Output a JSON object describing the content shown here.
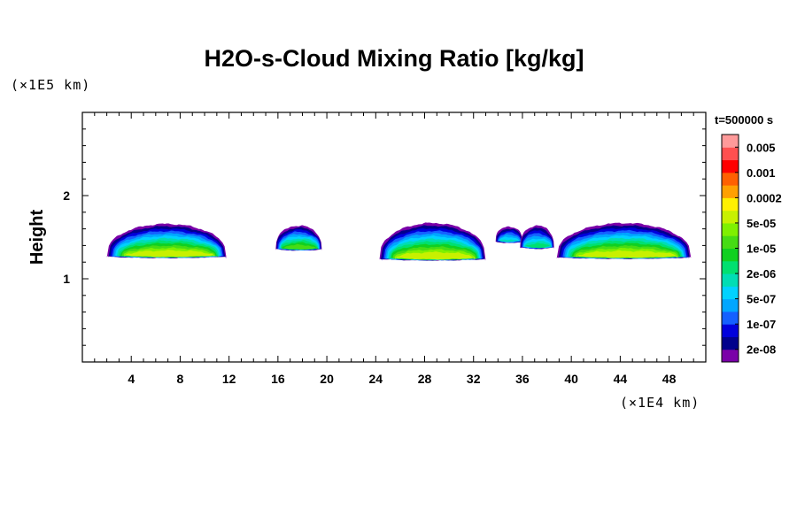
{
  "chart_data": {
    "type": "heatmap",
    "title": "H2O-s-Cloud Mixing Ratio [kg/kg]",
    "xlabel": "",
    "ylabel": "Height",
    "x_unit_label": "(×1E4 km)",
    "y_unit_label": "(×1E5 km)",
    "time_label": "t=500000 s",
    "xlim": [
      0,
      51
    ],
    "ylim": [
      0,
      3
    ],
    "x_ticks": [
      4,
      8,
      12,
      16,
      20,
      24,
      28,
      32,
      36,
      40,
      44,
      48
    ],
    "y_ticks": [
      1,
      2
    ],
    "x_minor_step": 1,
    "y_minor_step": 0.2,
    "grid": false,
    "colorbar": {
      "levels": [
        "2e-08",
        "1e-07",
        "5e-07",
        "2e-06",
        "1e-05",
        "5e-05",
        "0.0002",
        "0.001",
        "0.005"
      ],
      "colors": [
        "#7a00a8",
        "#00008c",
        "#0000dc",
        "#1460ff",
        "#00a6ff",
        "#00d2ff",
        "#00ddb4",
        "#00e070",
        "#10d020",
        "#46dc14",
        "#7ff000",
        "#c8f000",
        "#fff000",
        "#ffa000",
        "#ff6000",
        "#ff0000",
        "#ff5050",
        "#ff9a9a"
      ]
    },
    "cloud_bands": [
      {
        "x_start": 2.0,
        "x_end": 11.8,
        "base": 1.25,
        "top": 1.66,
        "max_band": 11
      },
      {
        "x_start": 15.8,
        "x_end": 19.6,
        "base": 1.34,
        "top": 1.64,
        "max_band": 9
      },
      {
        "x_start": 24.3,
        "x_end": 33.0,
        "base": 1.22,
        "top": 1.67,
        "max_band": 11
      },
      {
        "x_start": 33.8,
        "x_end": 36.0,
        "base": 1.43,
        "top": 1.63,
        "max_band": 6
      },
      {
        "x_start": 35.8,
        "x_end": 38.6,
        "base": 1.36,
        "top": 1.64,
        "max_band": 7
      },
      {
        "x_start": 38.8,
        "x_end": 49.8,
        "base": 1.24,
        "top": 1.67,
        "max_band": 11
      }
    ]
  }
}
